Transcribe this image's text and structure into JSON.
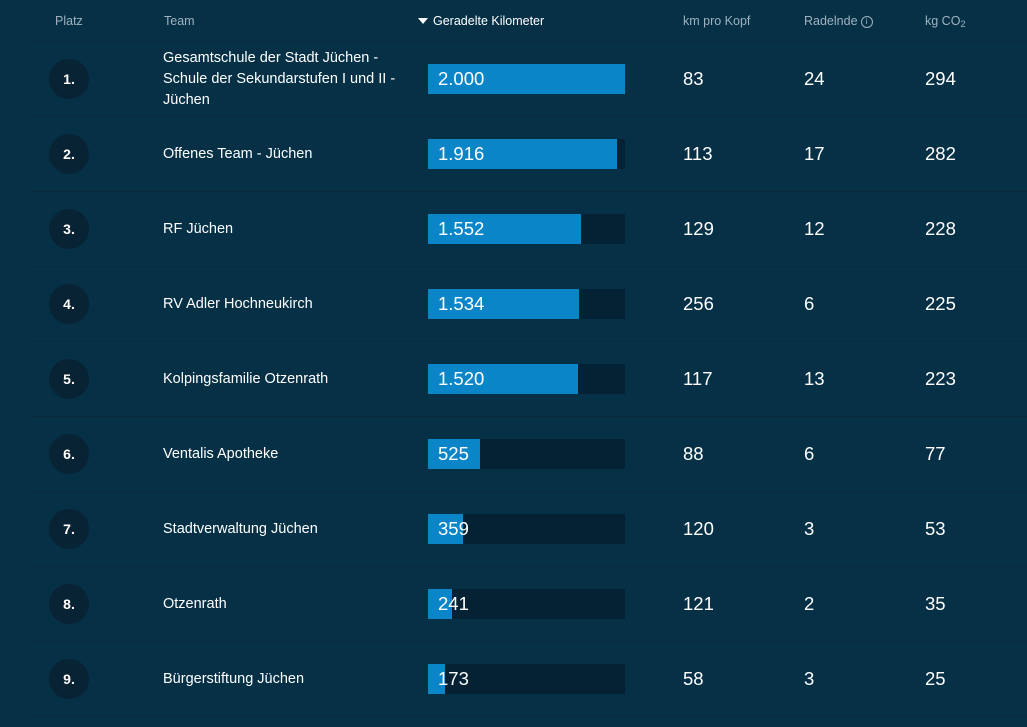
{
  "header": {
    "rank": "Platz",
    "team": "Team",
    "km": "Geradelte Kilometer",
    "km_per_head": "km pro Kopf",
    "cyclists": "Radelnde",
    "co2_prefix": "kg CO",
    "co2_sub": "2"
  },
  "bar_max": 2000,
  "colors": {
    "background": "#063046",
    "bar_fill": "#0a86c8",
    "bar_track": "#042234",
    "rank_circle": "#082334"
  },
  "rows": [
    {
      "rank": "1.",
      "team": "Gesamtschule der Stadt Jüchen - Schule der Sekundarstufen I und II - Jüchen",
      "km": "2.000",
      "km_value": 2000,
      "km_per_head": "83",
      "cyclists": "24",
      "co2": "294"
    },
    {
      "rank": "2.",
      "team": "Offenes Team - Jüchen",
      "km": "1.916",
      "km_value": 1916,
      "km_per_head": "113",
      "cyclists": "17",
      "co2": "282"
    },
    {
      "rank": "3.",
      "team": "RF Jüchen",
      "km": "1.552",
      "km_value": 1552,
      "km_per_head": "129",
      "cyclists": "12",
      "co2": "228"
    },
    {
      "rank": "4.",
      "team": "RV Adler Hochneukirch",
      "km": "1.534",
      "km_value": 1534,
      "km_per_head": "256",
      "cyclists": "6",
      "co2": "225"
    },
    {
      "rank": "5.",
      "team": "Kolpingsfamilie Otzenrath",
      "km": "1.520",
      "km_value": 1520,
      "km_per_head": "117",
      "cyclists": "13",
      "co2": "223"
    },
    {
      "rank": "6.",
      "team": "Ventalis Apotheke",
      "km": "525",
      "km_value": 525,
      "km_per_head": "88",
      "cyclists": "6",
      "co2": "77"
    },
    {
      "rank": "7.",
      "team": "Stadtverwaltung Jüchen",
      "km": "359",
      "km_value": 359,
      "km_per_head": "120",
      "cyclists": "3",
      "co2": "53"
    },
    {
      "rank": "8.",
      "team": "Otzenrath",
      "km": "241",
      "km_value": 241,
      "km_per_head": "121",
      "cyclists": "2",
      "co2": "35"
    },
    {
      "rank": "9.",
      "team": "Bürgerstiftung Jüchen",
      "km": "173",
      "km_value": 173,
      "km_per_head": "58",
      "cyclists": "3",
      "co2": "25"
    }
  ]
}
